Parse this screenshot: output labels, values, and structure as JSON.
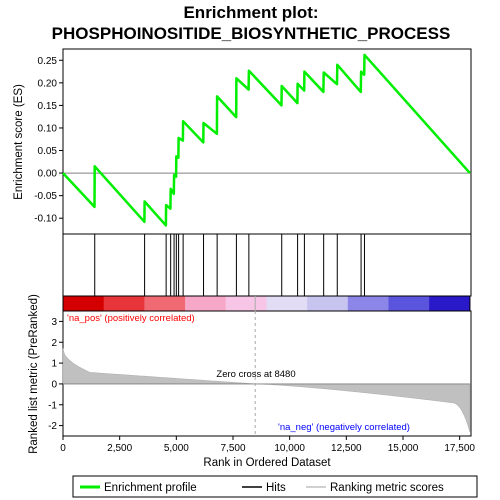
{
  "chart_data": {
    "type": "line",
    "title_line1": "Enrichment plot:",
    "title_line2": "PHOSPHOINOSITIDE_BIOSYNTHETIC_PROCESS",
    "es_ylabel": "Enrichment score (ES)",
    "rank_ylabel": "Ranked list metric (PreRanked)",
    "xlabel": "Rank in Ordered Dataset",
    "x_ticks": [
      0,
      2500,
      5000,
      7500,
      10000,
      12500,
      15000,
      17500
    ],
    "x_tick_labels": [
      "0",
      "2,500",
      "5,000",
      "7,500",
      "10,000",
      "12,500",
      "15,000",
      "17,500"
    ],
    "xlim": [
      0,
      18000
    ],
    "es_yticks": [
      -0.1,
      -0.05,
      0.0,
      0.05,
      0.1,
      0.15,
      0.2,
      0.25
    ],
    "es_ytick_labels": [
      "-0.10",
      "-0.05",
      "0.00",
      "0.05",
      "0.10",
      "0.15",
      "0.20",
      "0.25"
    ],
    "es_ylim": [
      -0.135,
      0.275
    ],
    "rank_yticks": [
      -2,
      -1,
      0,
      1,
      2,
      3
    ],
    "rank_ytick_labels": [
      "-2",
      "-1",
      "0",
      "1",
      "2",
      "3"
    ],
    "rank_ylim": [
      -2.5,
      3.5
    ],
    "hits": [
      1400,
      3600,
      4550,
      4750,
      4900,
      5000,
      5100,
      5300,
      6200,
      6800,
      7650,
      8200,
      9650,
      10350,
      10650,
      11500,
      12100,
      13150,
      13300
    ],
    "es_curve": [
      [
        0,
        0.0
      ],
      [
        1390,
        -0.075
      ],
      [
        1400,
        0.015
      ],
      [
        3590,
        -0.108
      ],
      [
        3600,
        -0.063
      ],
      [
        4540,
        -0.116
      ],
      [
        4550,
        -0.071
      ],
      [
        4740,
        -0.079
      ],
      [
        4750,
        -0.035
      ],
      [
        4890,
        -0.046
      ],
      [
        4900,
        -0.004
      ],
      [
        4990,
        -0.008
      ],
      [
        5000,
        0.037
      ],
      [
        5090,
        0.034
      ],
      [
        5100,
        0.078
      ],
      [
        5290,
        0.072
      ],
      [
        5300,
        0.115
      ],
      [
        6190,
        0.068
      ],
      [
        6200,
        0.111
      ],
      [
        6790,
        0.087
      ],
      [
        6800,
        0.17
      ],
      [
        7640,
        0.124
      ],
      [
        7650,
        0.21
      ],
      [
        8190,
        0.185
      ],
      [
        8200,
        0.227
      ],
      [
        9640,
        0.15
      ],
      [
        9650,
        0.193
      ],
      [
        10340,
        0.155
      ],
      [
        10350,
        0.198
      ],
      [
        10640,
        0.183
      ],
      [
        10650,
        0.225
      ],
      [
        11490,
        0.18
      ],
      [
        11500,
        0.223
      ],
      [
        12090,
        0.197
      ],
      [
        12100,
        0.24
      ],
      [
        13140,
        0.18
      ],
      [
        13150,
        0.225
      ],
      [
        13290,
        0.218
      ],
      [
        13300,
        0.262
      ],
      [
        17950,
        0.0
      ]
    ],
    "zero_cross_label": "Zero cross at 8480",
    "zero_cross": 8480,
    "pos_label": "'na_pos' (positively correlated)",
    "neg_label": "'na_neg' (negatively correlated)",
    "metric_shape": {
      "n": 17950,
      "start": 1.7,
      "knee": 0.55,
      "zero_at": 8480,
      "end_knee": -0.9,
      "end": -2.3
    },
    "legend": [
      "Enrichment profile",
      "Hits",
      "Ranking metric scores"
    ],
    "colors": {
      "es_line": "#00ee00",
      "hit": "#000000",
      "metric": "#c0c0c0",
      "pos_text": "#ff0000",
      "neg_text": "#0000ff",
      "zero_line": "#aaaaaa"
    },
    "heatmap_colors": [
      "#d40000",
      "#e8353a",
      "#f06a74",
      "#f7a8c8",
      "#f7c6e6",
      "#e2dcf4",
      "#c8c4f0",
      "#8c86e8",
      "#5b54dd",
      "#2a19c8"
    ]
  }
}
